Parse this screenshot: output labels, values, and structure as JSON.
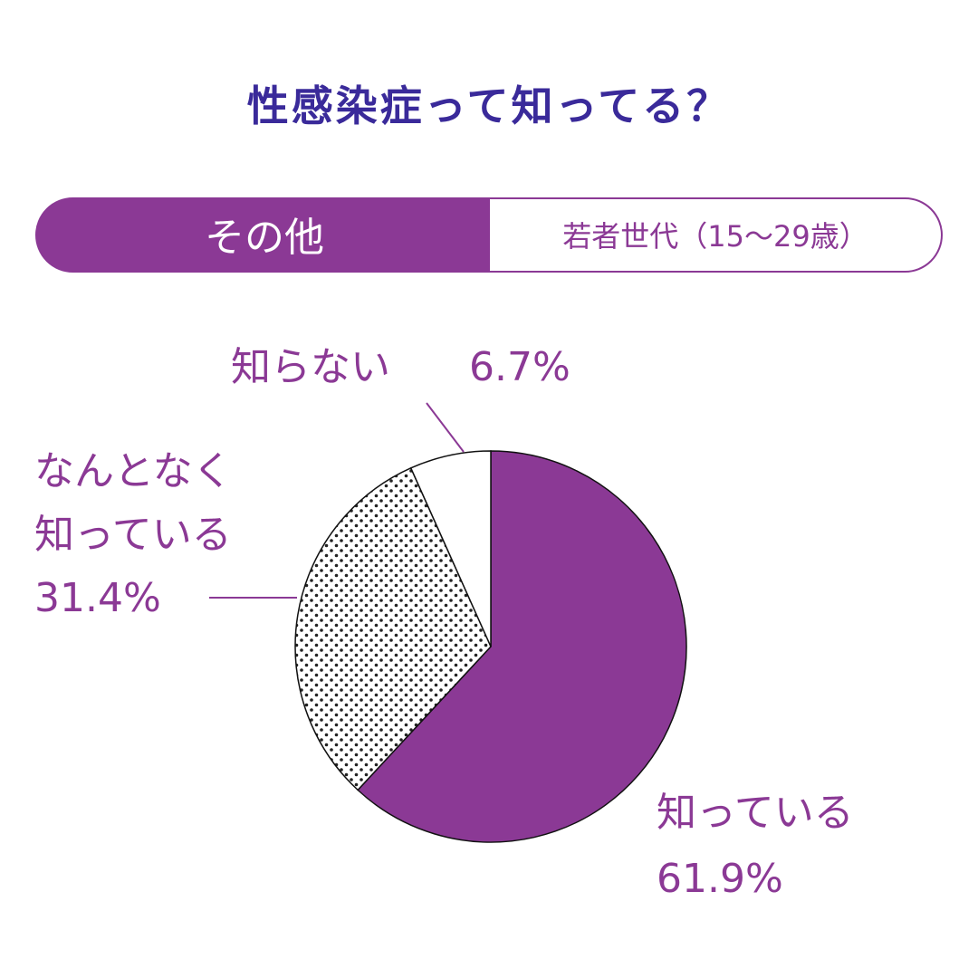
{
  "title": "性感染症って知ってる？",
  "tabs": [
    {
      "label": "その他",
      "active": true
    },
    {
      "label": "若者世代（15～29歳）",
      "active": false
    }
  ],
  "colors": {
    "accent": "#8b3995",
    "title": "#3a2a9a",
    "background": "#ffffff"
  },
  "chart_data": {
    "type": "pie",
    "start": "12 o'clock, clockwise",
    "slices": [
      {
        "label": "知っている",
        "value": 61.9,
        "value_text": "61.9%",
        "fill": "solid-purple"
      },
      {
        "label_lines": [
          "なんとなく",
          "知っている"
        ],
        "value": 31.4,
        "value_text": "31.4%",
        "fill": "dotted"
      },
      {
        "label": "知らない",
        "value": 6.7,
        "value_text": "6.7%",
        "fill": "white"
      }
    ]
  }
}
